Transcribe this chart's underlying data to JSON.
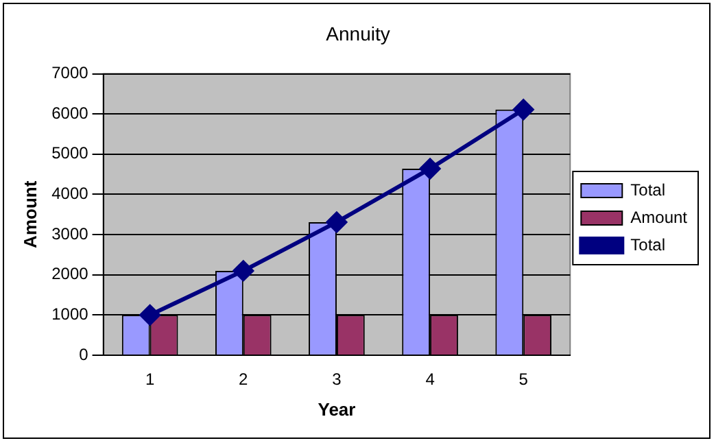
{
  "chart_data": {
    "type": "bar",
    "title": "Annuity",
    "xlabel": "Year",
    "ylabel": "Amount",
    "categories": [
      "1",
      "2",
      "3",
      "4",
      "5"
    ],
    "series": [
      {
        "name": "Total",
        "color": "#9999ff",
        "values": [
          1000,
          2100,
          3310,
          4640,
          6110
        ]
      },
      {
        "name": "Amount",
        "color": "#993366",
        "values": [
          1000,
          1000,
          1000,
          1000,
          1000
        ]
      },
      {
        "name": "Total",
        "type": "line",
        "color": "#000080",
        "values": [
          1000,
          2100,
          3310,
          4640,
          6110
        ]
      }
    ],
    "ylim": [
      0,
      7000
    ],
    "yticks": [
      0,
      1000,
      2000,
      3000,
      4000,
      5000,
      6000,
      7000
    ],
    "grid": "y",
    "legend": "right",
    "marker": "diamond"
  }
}
